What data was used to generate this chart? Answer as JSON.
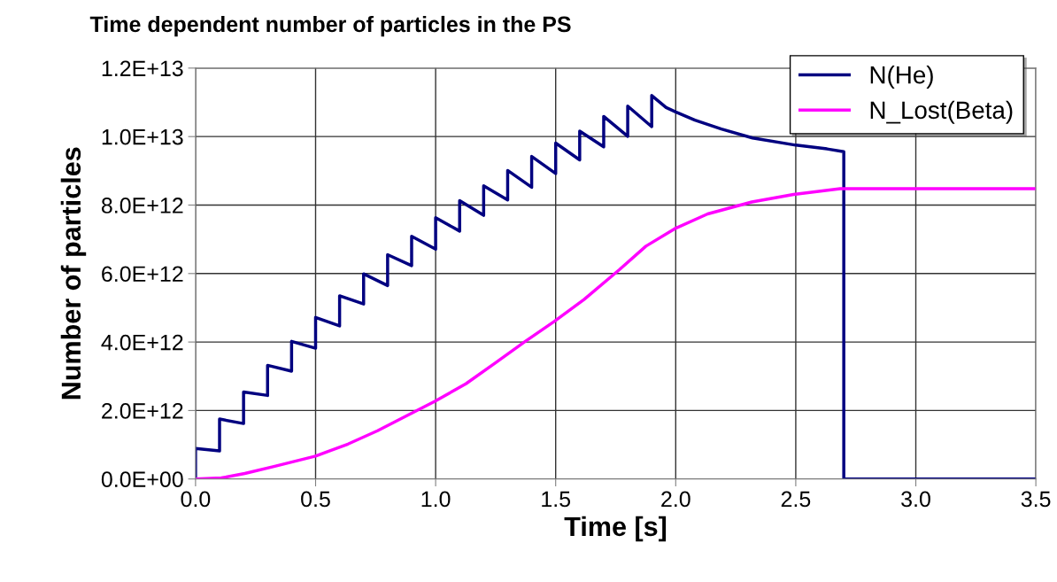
{
  "chart_data": {
    "type": "line",
    "title": "Time dependent number of particles in the PS",
    "xlabel": "Time [s]",
    "ylabel": "Number of particles",
    "xlim": [
      0,
      3.5
    ],
    "xticks": [
      {
        "value": 0,
        "label": "0.0"
      },
      {
        "value": 0.5,
        "label": "0.5"
      },
      {
        "value": 1,
        "label": "1.0"
      },
      {
        "value": 1.5,
        "label": "1.5"
      },
      {
        "value": 2,
        "label": "2.0"
      },
      {
        "value": 2.5,
        "label": "2.5"
      },
      {
        "value": 3,
        "label": "3.0"
      },
      {
        "value": 3.5,
        "label": "3.5"
      }
    ],
    "ylim": [
      0,
      12000000000000.0
    ],
    "yticks": [
      {
        "value": 0,
        "label": "0.0E+00"
      },
      {
        "value": 2000000000000.0,
        "label": "2.0E+12"
      },
      {
        "value": 4000000000000.0,
        "label": "4.0E+12"
      },
      {
        "value": 6000000000000.0,
        "label": "6.0E+12"
      },
      {
        "value": 8000000000000.0,
        "label": "8.0E+12"
      },
      {
        "value": 10000000000000.0,
        "label": "1.0E+13"
      },
      {
        "value": 12000000000000.0,
        "label": "1.2E+13"
      }
    ],
    "grid": true,
    "legend": "top right",
    "series": [
      {
        "name": "N(He)",
        "color": "#000080",
        "x": [
          0,
          0,
          0.1,
          0.1,
          0.2,
          0.2,
          0.3,
          0.3,
          0.4,
          0.4,
          0.5,
          0.5,
          0.6,
          0.6,
          0.7,
          0.7,
          0.8,
          0.8,
          0.9,
          0.9,
          1.0,
          1.0,
          1.1,
          1.1,
          1.2,
          1.2,
          1.3,
          1.3,
          1.4,
          1.4,
          1.5,
          1.5,
          1.6,
          1.6,
          1.7,
          1.7,
          1.8,
          1.8,
          1.9,
          1.9,
          1.96,
          2.0,
          2.08,
          2.19,
          2.32,
          2.5,
          2.63,
          2.7,
          2.7,
          3.5
        ],
        "values": [
          0,
          890000000000.0,
          820000000000.0,
          1750000000000.0,
          1620000000000.0,
          2540000000000.0,
          2440000000000.0,
          3320000000000.0,
          3150000000000.0,
          4020000000000.0,
          3820000000000.0,
          4720000000000.0,
          4470000000000.0,
          5350000000000.0,
          5110000000000.0,
          5990000000000.0,
          5650000000000.0,
          6550000000000.0,
          6230000000000.0,
          7090000000000.0,
          6710000000000.0,
          7630000000000.0,
          7240000000000.0,
          8130000000000.0,
          7700000000000.0,
          8560000000000.0,
          8150000000000.0,
          9010000000000.0,
          8520000000000.0,
          9420000000000.0,
          8920000000000.0,
          9810000000000.0,
          9320000000000.0,
          10160000000000.0,
          9700000000000.0,
          10590000000000.0,
          10010000000000.0,
          10890000000000.0,
          10290000000000.0,
          11200000000000.0,
          10850000000000.0,
          10720000000000.0,
          10480000000000.0,
          10220000000000.0,
          9960000000000.0,
          9750000000000.0,
          9640000000000.0,
          9560000000000.0,
          0,
          0
        ]
      },
      {
        "name": "N_Lost(Beta)",
        "color": "#ff00ff",
        "x": [
          0,
          0.107,
          0.205,
          0.33,
          0.5,
          0.635,
          0.758,
          0.88,
          0.997,
          1.126,
          1.249,
          1.372,
          1.494,
          1.618,
          1.765,
          1.876,
          1.996,
          2.133,
          2.317,
          2.491,
          2.685,
          3.5
        ],
        "values": [
          0,
          30000000000.0,
          160000000000.0,
          370000000000.0,
          670000000000.0,
          1020000000000.0,
          1410000000000.0,
          1850000000000.0,
          2270000000000.0,
          2780000000000.0,
          3390000000000.0,
          4010000000000.0,
          4600000000000.0,
          5240000000000.0,
          6110000000000.0,
          6800000000000.0,
          7310000000000.0,
          7740000000000.0,
          8090000000000.0,
          8310000000000.0,
          8480000000000.0,
          8480000000000.0
        ]
      }
    ]
  }
}
